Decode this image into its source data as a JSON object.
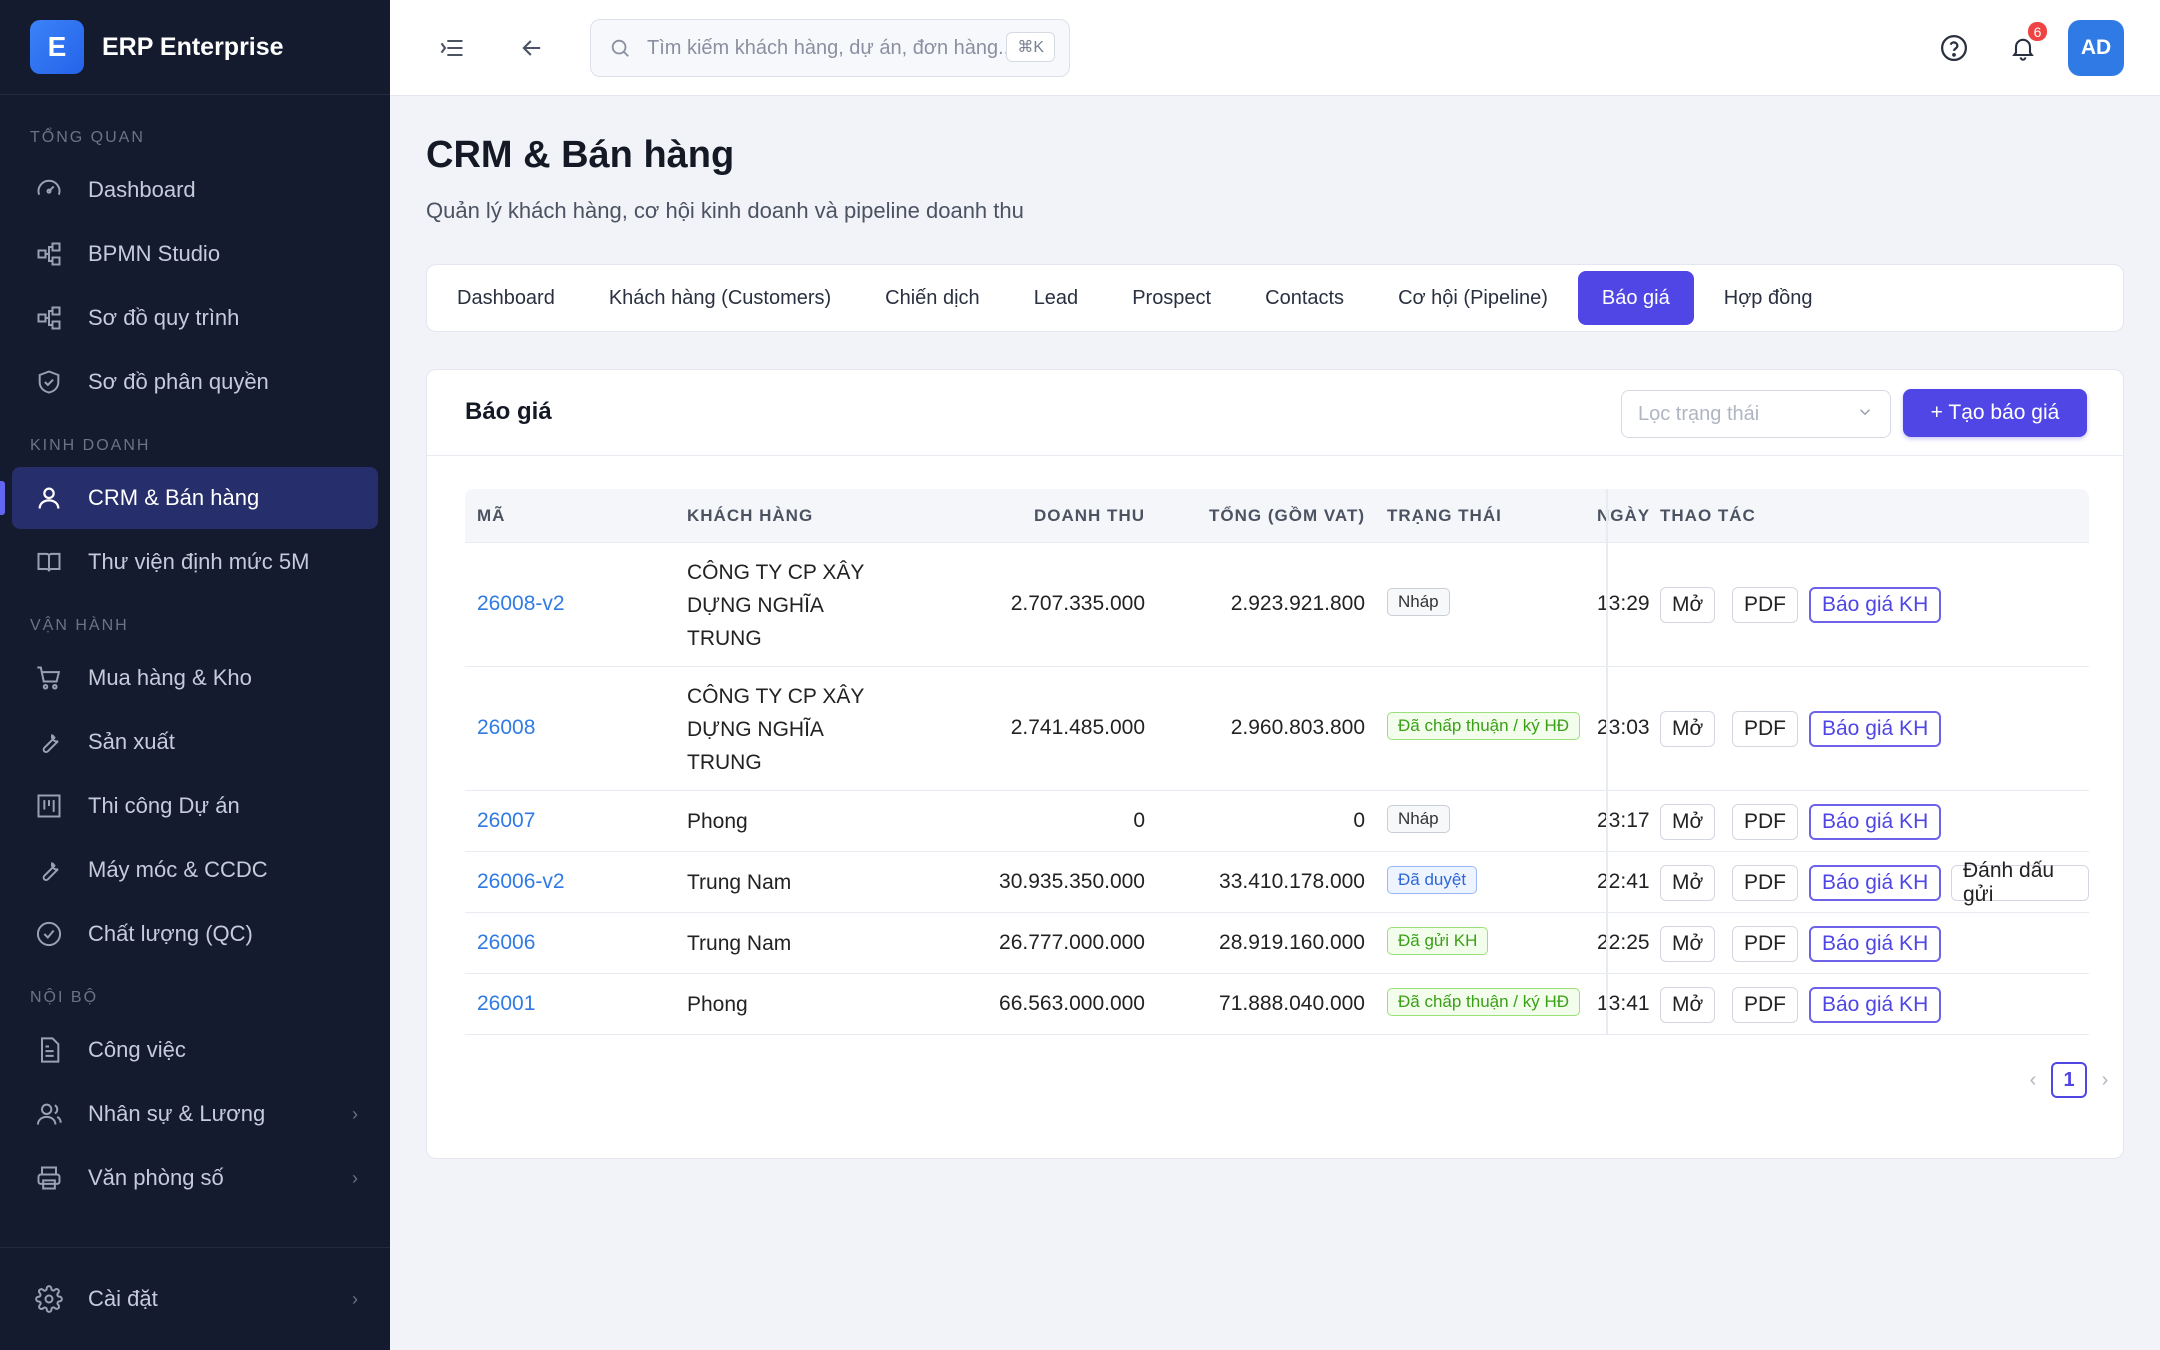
{
  "brand": {
    "logo": "E",
    "name": "ERP Enterprise"
  },
  "sidebar": {
    "sections": [
      {
        "label": "TỔNG QUAN",
        "items": [
          {
            "label": "Dashboard",
            "icon": "gauge-icon"
          },
          {
            "label": "BPMN Studio",
            "icon": "flow-icon"
          },
          {
            "label": "Sơ đồ quy trình",
            "icon": "flow-icon"
          },
          {
            "label": "Sơ đồ phân quyền",
            "icon": "shield-icon"
          }
        ]
      },
      {
        "label": "KINH DOANH",
        "items": [
          {
            "label": "CRM & Bán hàng",
            "icon": "user-icon",
            "active": true
          },
          {
            "label": "Thư viện định mức 5M",
            "icon": "book-icon"
          }
        ]
      },
      {
        "label": "VẬN HÀNH",
        "items": [
          {
            "label": "Mua hàng & Kho",
            "icon": "cart-icon"
          },
          {
            "label": "Sản xuất",
            "icon": "tool-icon"
          },
          {
            "label": "Thi công Dự án",
            "icon": "board-icon"
          },
          {
            "label": "Máy móc & CCDC",
            "icon": "tool-icon"
          },
          {
            "label": "Chất lượng (QC)",
            "icon": "check-circle-icon"
          }
        ]
      },
      {
        "label": "NỘI BỘ",
        "items": [
          {
            "label": "Công việc",
            "icon": "file-icon"
          },
          {
            "label": "Nhân sự & Lương",
            "icon": "users-icon",
            "chevron": true
          },
          {
            "label": "Văn phòng số",
            "icon": "printer-icon",
            "chevron": true
          }
        ]
      }
    ],
    "bottom": {
      "label": "Cài đặt",
      "icon": "gear-icon"
    }
  },
  "topbar": {
    "search_placeholder": "Tìm kiếm khách hàng, dự án, đơn hàng...",
    "shortcut": "⌘K",
    "notifications": "6",
    "avatar": "AD"
  },
  "page": {
    "title": "CRM & Bán hàng",
    "subtitle": "Quản lý khách hàng, cơ hội kinh doanh và pipeline doanh thu"
  },
  "tabs": [
    {
      "label": "Dashboard"
    },
    {
      "label": "Khách hàng (Customers)"
    },
    {
      "label": "Chiến dịch"
    },
    {
      "label": "Lead"
    },
    {
      "label": "Prospect"
    },
    {
      "label": "Contacts"
    },
    {
      "label": "Cơ hội (Pipeline)"
    },
    {
      "label": "Báo giá",
      "active": true
    },
    {
      "label": "Hợp đồng"
    }
  ],
  "card": {
    "title": "Báo giá",
    "filter_placeholder": "Lọc trạng thái",
    "create_label": "+ Tạo báo giá"
  },
  "table": {
    "headers": {
      "code": "MÃ",
      "customer": "KHÁCH HÀNG",
      "revenue": "DOANH THU",
      "total": "TỔNG (GỒM VAT)",
      "status": "TRẠNG THÁI",
      "date": "NGÀY",
      "actions": "THAO TÁC"
    },
    "action_labels": {
      "open": "Mở",
      "pdf": "PDF",
      "quote": "Báo giá KH",
      "mark_sent": "Đánh dấu gửi"
    },
    "rows": [
      {
        "code": "26008-v2",
        "customer": [
          "CÔNG TY CP XÂY",
          "DỰNG NGHĨA",
          "TRUNG"
        ],
        "revenue": "2.707.335.000",
        "total": "2.923.921.800",
        "status": "Nháp",
        "status_color": "gray",
        "date": "13:29"
      },
      {
        "code": "26008",
        "customer": [
          "CÔNG TY CP XÂY",
          "DỰNG NGHĨA",
          "TRUNG"
        ],
        "revenue": "2.741.485.000",
        "total": "2.960.803.800",
        "status": "Đã chấp thuận / ký HĐ",
        "status_color": "green",
        "date": "23:03"
      },
      {
        "code": "26007",
        "customer": [
          "Phong"
        ],
        "revenue": "0",
        "total": "0",
        "status": "Nháp",
        "status_color": "gray",
        "date": "23:17"
      },
      {
        "code": "26006-v2",
        "customer": [
          "Trung Nam"
        ],
        "revenue": "30.935.350.000",
        "total": "33.410.178.000",
        "status": "Đã duyệt",
        "status_color": "blue",
        "date": "22:41",
        "mark_sent": true
      },
      {
        "code": "26006",
        "customer": [
          "Trung Nam"
        ],
        "revenue": "26.777.000.000",
        "total": "28.919.160.000",
        "status": "Đã gửi KH",
        "status_color": "green",
        "date": "22:25"
      },
      {
        "code": "26001",
        "customer": [
          "Phong"
        ],
        "revenue": "66.563.000.000",
        "total": "71.888.040.000",
        "status": "Đã chấp thuận / ký HĐ",
        "status_color": "green",
        "date": "13:41"
      }
    ]
  },
  "pagination": {
    "current": "1",
    "prev": "‹",
    "next": "›"
  }
}
